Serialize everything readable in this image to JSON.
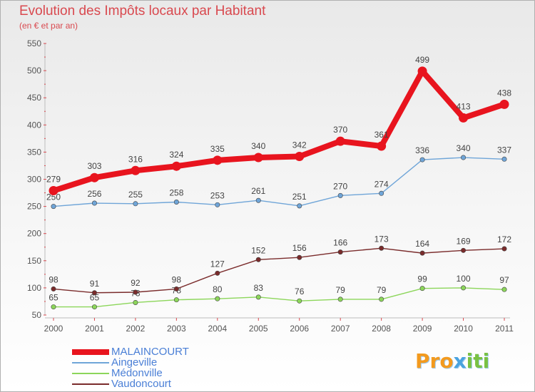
{
  "title": "Evolution des Impôts locaux par Habitant",
  "subtitle": "(en € et par an)",
  "logo": {
    "text": "Proxiti",
    "part1": "Pro",
    "part2": "x",
    "part3": "iti"
  },
  "colors": {
    "title": "#d9494f",
    "axis": "#555555",
    "legend_text": "#4a7fd6"
  },
  "chart_data": {
    "type": "line",
    "title": "Evolution des Impôts locaux par Habitant",
    "subtitle": "(en € et par an)",
    "xlabel": "",
    "ylabel": "",
    "ylim": [
      50,
      550
    ],
    "yticks": [
      50,
      100,
      150,
      200,
      250,
      300,
      350,
      400,
      450,
      500,
      550
    ],
    "categories": [
      "2000",
      "2001",
      "2002",
      "2003",
      "2004",
      "2005",
      "2006",
      "2007",
      "2008",
      "2009",
      "2010",
      "2011"
    ],
    "series": [
      {
        "name": "MALAINCOURT",
        "color": "#e8141e",
        "values": [
          279,
          303,
          316,
          324,
          335,
          340,
          342,
          370,
          361,
          499,
          413,
          438
        ]
      },
      {
        "name": "Aingeville",
        "color": "#6fa5d8",
        "values": [
          250,
          256,
          255,
          258,
          253,
          261,
          251,
          270,
          274,
          336,
          340,
          337
        ]
      },
      {
        "name": "Médonville",
        "color": "#8cd65a",
        "values": [
          65,
          65,
          73,
          78,
          80,
          83,
          76,
          79,
          79,
          99,
          100,
          97
        ]
      },
      {
        "name": "Vaudoncourt",
        "color": "#7a2b2b",
        "values": [
          98,
          91,
          92,
          98,
          127,
          152,
          156,
          166,
          173,
          164,
          169,
          172
        ]
      }
    ]
  }
}
